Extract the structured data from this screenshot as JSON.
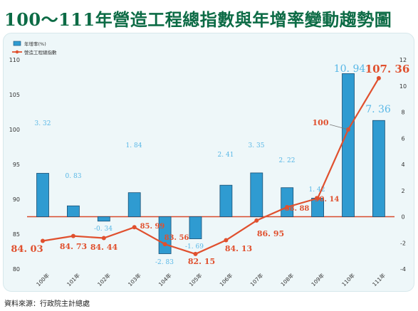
{
  "title": "100～111年營造工程總指數與年增率變動趨勢圖",
  "source": "資料來源：行政院主計總處",
  "chart_data": {
    "type": "bar",
    "categories": [
      "100年",
      "101年",
      "102年",
      "103年",
      "104年",
      "105年",
      "106年",
      "107年",
      "108年",
      "109年",
      "110年",
      "111年"
    ],
    "series": [
      {
        "name": "年增率(%)",
        "type": "bar",
        "axis": "right",
        "color": "#2f9bd1",
        "values": [
          3.32,
          0.83,
          -0.34,
          1.84,
          -2.83,
          -1.69,
          2.41,
          3.35,
          2.22,
          1.42,
          10.94,
          7.36
        ],
        "labels": [
          "3. 32",
          "0. 83",
          "-0. 34",
          "1. 84",
          "-2. 83",
          "-1. 69",
          "2. 41",
          "3. 35",
          "2. 22",
          "1. 42",
          "10. 94",
          "7. 36"
        ]
      },
      {
        "name": "營造工程總指數",
        "type": "line",
        "axis": "left",
        "color": "#e0502e",
        "values": [
          84.03,
          84.73,
          84.44,
          85.99,
          83.56,
          82.15,
          84.13,
          86.95,
          88.88,
          90.14,
          100,
          107.36
        ],
        "labels": [
          "84. 03",
          "84. 73",
          "84. 44",
          "85. 99",
          "83. 56",
          "82. 15",
          "84. 13",
          "86. 95",
          "88. 88",
          "90. 14",
          "100",
          "107. 36"
        ]
      }
    ],
    "left_axis": {
      "min": 80,
      "max": 110,
      "ticks": [
        "80",
        "85",
        "90",
        "95",
        "100",
        "105",
        "110"
      ]
    },
    "right_axis": {
      "min": -4,
      "max": 12,
      "ticks": [
        "-4",
        "-2",
        "0",
        "2",
        "4",
        "6",
        "8",
        "10",
        "12"
      ]
    },
    "legend": {
      "position": "top-left"
    },
    "colors": {
      "bar": "#2f9bd1",
      "line": "#e0502e",
      "bar_label": "#58b7e6",
      "title": "#0c6b45"
    }
  }
}
